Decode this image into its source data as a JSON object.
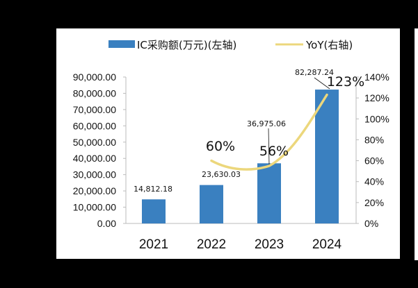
{
  "chart_data": {
    "type": "bar",
    "title": "",
    "categories": [
      "2021",
      "2022",
      "2023",
      "2024"
    ],
    "series": [
      {
        "name": "IC采购额(万元)(左轴)",
        "type": "bar",
        "axis": "left",
        "color": "#3a80c0",
        "values": [
          14812.18,
          23630.03,
          36975.06,
          82287.24
        ],
        "labels": [
          "14,812.18",
          "23,630.03",
          "36,975.06",
          "82,287.24"
        ]
      },
      {
        "name": "YoY(右轴)",
        "type": "line",
        "axis": "right",
        "color": "#ecd77c",
        "values": [
          null,
          60,
          56,
          123
        ],
        "labels": [
          "",
          "60%",
          "56%",
          "123%"
        ]
      }
    ],
    "xlabel": "",
    "ylabel": "",
    "ylim": [
      0,
      90000
    ],
    "y2lim": [
      0,
      140
    ],
    "yticks": [
      "0.00",
      "10,000.00",
      "20,000.00",
      "30,000.00",
      "40,000.00",
      "50,000.00",
      "60,000.00",
      "70,000.00",
      "80,000.00",
      "90,000.00"
    ],
    "y2ticks": [
      "0%",
      "20%",
      "40%",
      "60%",
      "80%",
      "100%",
      "120%",
      "140%"
    ],
    "grid": false,
    "legend_position": "top"
  },
  "legend": {
    "bar": "IC采购额(万元)(左轴)",
    "line": "YoY(右轴)"
  }
}
